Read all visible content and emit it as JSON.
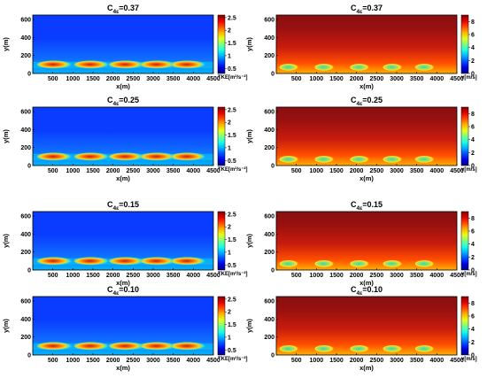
{
  "colors": {
    "tke_background": "#0a3cff",
    "tke_hot": "#c21e1e",
    "v_background": "#8a1010",
    "v_wake": "#38d8a6"
  },
  "chart_data": [
    {
      "type": "heatmap",
      "panel": "tke-0.37",
      "title_base": "C",
      "title_sub": "4ε",
      "title_value": "=0.37",
      "xlabel": "x(m)",
      "ylabel": "y(m)",
      "xlim": [
        0,
        4500
      ],
      "ylim": [
        0,
        650
      ],
      "xticks": [
        500,
        1000,
        1500,
        2000,
        2500,
        3000,
        3500,
        4000,
        4500
      ],
      "yticks": [
        0,
        200,
        400,
        600
      ],
      "colorbar": {
        "label": "TKE[m²/s⁻²]",
        "range": [
          0.3,
          2.6
        ],
        "ticks": [
          0.5,
          1,
          1.5,
          2,
          2.5
        ],
        "colormap": "jet"
      },
      "features": [
        {
          "x": 550,
          "y": 100,
          "value": 2.0
        },
        {
          "x": 1470,
          "y": 100,
          "value": 2.0
        },
        {
          "x": 2340,
          "y": 100,
          "value": 2.0
        },
        {
          "x": 3120,
          "y": 100,
          "value": 2.0
        },
        {
          "x": 3880,
          "y": 100,
          "value": 2.0
        }
      ]
    },
    {
      "type": "heatmap",
      "panel": "v-0.37",
      "title_base": "C",
      "title_sub": "4ε",
      "title_value": "=0.37",
      "xlabel": "x(m)",
      "ylabel": "y(m)",
      "xlim": [
        0,
        4500
      ],
      "ylim": [
        0,
        650
      ],
      "xticks": [
        500,
        1000,
        1500,
        2000,
        2500,
        3000,
        3500,
        4000,
        4500
      ],
      "yticks": [
        0,
        200,
        400,
        600
      ],
      "colorbar": {
        "label": "v[m/s]",
        "range": [
          0,
          9
        ],
        "ticks": [
          0,
          2,
          4,
          6,
          8
        ],
        "colormap": "jet"
      },
      "features": [
        {
          "x": 320,
          "y": 70,
          "value": 3.5
        },
        {
          "x": 1200,
          "y": 70,
          "value": 3.5
        },
        {
          "x": 2080,
          "y": 70,
          "value": 3.5
        },
        {
          "x": 2900,
          "y": 70,
          "value": 3.5
        },
        {
          "x": 3700,
          "y": 70,
          "value": 3.5
        }
      ]
    },
    {
      "type": "heatmap",
      "panel": "tke-0.25",
      "title_base": "C",
      "title_sub": "4ε",
      "title_value": "=0.25",
      "xlabel": "x(m)",
      "ylabel": "y(m)",
      "xlim": [
        0,
        4500
      ],
      "ylim": [
        0,
        650
      ],
      "xticks": [
        500,
        1000,
        1500,
        2000,
        2500,
        3000,
        3500,
        4000,
        4500
      ],
      "yticks": [
        0,
        200,
        400,
        600
      ],
      "colorbar": {
        "label": "TKE[m²/s⁻²]",
        "range": [
          0.3,
          2.6
        ],
        "ticks": [
          0.5,
          1,
          1.5,
          2,
          2.5
        ],
        "colormap": "jet"
      },
      "features": [
        {
          "x": 550,
          "y": 100,
          "value": 2.0
        },
        {
          "x": 1470,
          "y": 100,
          "value": 2.0
        },
        {
          "x": 2340,
          "y": 100,
          "value": 2.0
        },
        {
          "x": 3120,
          "y": 100,
          "value": 2.0
        },
        {
          "x": 3880,
          "y": 100,
          "value": 2.0
        }
      ]
    },
    {
      "type": "heatmap",
      "panel": "v-0.25",
      "title_base": "C",
      "title_sub": "4ε",
      "title_value": "=0.25",
      "xlabel": "x(m)",
      "ylabel": "y(m)",
      "xlim": [
        0,
        4500
      ],
      "ylim": [
        0,
        650
      ],
      "xticks": [
        500,
        1000,
        1500,
        2000,
        2500,
        3000,
        3500,
        4000,
        4500
      ],
      "yticks": [
        0,
        200,
        400,
        600
      ],
      "colorbar": {
        "label": "v[m/s]",
        "range": [
          0,
          9
        ],
        "ticks": [
          0,
          2,
          4,
          6,
          8
        ],
        "colormap": "jet"
      },
      "features": [
        {
          "x": 320,
          "y": 70,
          "value": 3.5
        },
        {
          "x": 1200,
          "y": 70,
          "value": 3.5
        },
        {
          "x": 2080,
          "y": 70,
          "value": 3.5
        },
        {
          "x": 2900,
          "y": 70,
          "value": 3.5
        },
        {
          "x": 3700,
          "y": 70,
          "value": 3.5
        }
      ]
    },
    {
      "type": "heatmap",
      "panel": "tke-0.15",
      "title_base": "C",
      "title_sub": "4ε",
      "title_value": "=0.15",
      "xlabel": "x(m)",
      "ylabel": "y(m)",
      "xlim": [
        0,
        4500
      ],
      "ylim": [
        0,
        650
      ],
      "xticks": [
        500,
        1000,
        1500,
        2000,
        2500,
        3000,
        3500,
        4000,
        4500
      ],
      "yticks": [
        0,
        200,
        400,
        600
      ],
      "colorbar": {
        "label": "TKE[m²/s⁻²]",
        "range": [
          0.3,
          2.6
        ],
        "ticks": [
          0.5,
          1,
          1.5,
          2,
          2.5
        ],
        "colormap": "jet"
      },
      "features": [
        {
          "x": 550,
          "y": 100,
          "value": 2.1
        },
        {
          "x": 1470,
          "y": 100,
          "value": 2.1
        },
        {
          "x": 2340,
          "y": 100,
          "value": 2.1
        },
        {
          "x": 3120,
          "y": 100,
          "value": 2.1
        },
        {
          "x": 3880,
          "y": 100,
          "value": 2.1
        }
      ]
    },
    {
      "type": "heatmap",
      "panel": "v-0.15",
      "title_base": "C",
      "title_sub": "4ε",
      "title_value": "=0.15",
      "xlabel": "x(m)",
      "ylabel": "y(m)",
      "xlim": [
        0,
        4500
      ],
      "ylim": [
        0,
        650
      ],
      "xticks": [
        500,
        1000,
        1500,
        2000,
        2500,
        3000,
        3500,
        4000,
        4500
      ],
      "yticks": [
        0,
        200,
        400,
        600
      ],
      "colorbar": {
        "label": "v[m/s]",
        "range": [
          0,
          9
        ],
        "ticks": [
          0,
          2,
          4,
          6,
          8
        ],
        "colormap": "jet"
      },
      "features": [
        {
          "x": 320,
          "y": 70,
          "value": 3.5
        },
        {
          "x": 1200,
          "y": 70,
          "value": 3.5
        },
        {
          "x": 2080,
          "y": 70,
          "value": 3.5
        },
        {
          "x": 2900,
          "y": 70,
          "value": 3.5
        },
        {
          "x": 3700,
          "y": 70,
          "value": 3.5
        }
      ]
    },
    {
      "type": "heatmap",
      "panel": "tke-0.10",
      "title_base": "C",
      "title_sub": "4ε",
      "title_value": "=0.10",
      "xlabel": "x(m)",
      "ylabel": "y(m)",
      "xlim": [
        0,
        4500
      ],
      "ylim": [
        0,
        650
      ],
      "xticks": [
        500,
        1000,
        1500,
        2000,
        2500,
        3000,
        3500,
        4000,
        4500
      ],
      "yticks": [
        0,
        200,
        400,
        600
      ],
      "colorbar": {
        "label": "TKE[m²/s⁻²]",
        "range": [
          0.3,
          2.6
        ],
        "ticks": [
          0.5,
          1,
          1.5,
          2,
          2.5
        ],
        "colormap": "jet"
      },
      "features": [
        {
          "x": 550,
          "y": 100,
          "value": 2.2
        },
        {
          "x": 1470,
          "y": 100,
          "value": 2.2
        },
        {
          "x": 2340,
          "y": 100,
          "value": 2.2
        },
        {
          "x": 3120,
          "y": 100,
          "value": 2.2
        },
        {
          "x": 3880,
          "y": 100,
          "value": 2.2
        }
      ]
    },
    {
      "type": "heatmap",
      "panel": "v-0.10",
      "title_base": "C",
      "title_sub": "4ε",
      "title_value": "=0.10",
      "xlabel": "x(m)",
      "ylabel": "y(m)",
      "xlim": [
        0,
        4500
      ],
      "ylim": [
        0,
        650
      ],
      "xticks": [
        500,
        1000,
        1500,
        2000,
        2500,
        3000,
        3500,
        4000,
        4500
      ],
      "yticks": [
        0,
        200,
        400,
        600
      ],
      "colorbar": {
        "label": "v[m/s]",
        "range": [
          0,
          9
        ],
        "ticks": [
          0,
          2,
          4,
          6,
          8
        ],
        "colormap": "jet"
      },
      "features": [
        {
          "x": 320,
          "y": 70,
          "value": 3.5
        },
        {
          "x": 1200,
          "y": 70,
          "value": 3.5
        },
        {
          "x": 2080,
          "y": 70,
          "value": 3.5
        },
        {
          "x": 2900,
          "y": 70,
          "value": 3.5
        },
        {
          "x": 3700,
          "y": 70,
          "value": 3.5
        }
      ]
    }
  ]
}
